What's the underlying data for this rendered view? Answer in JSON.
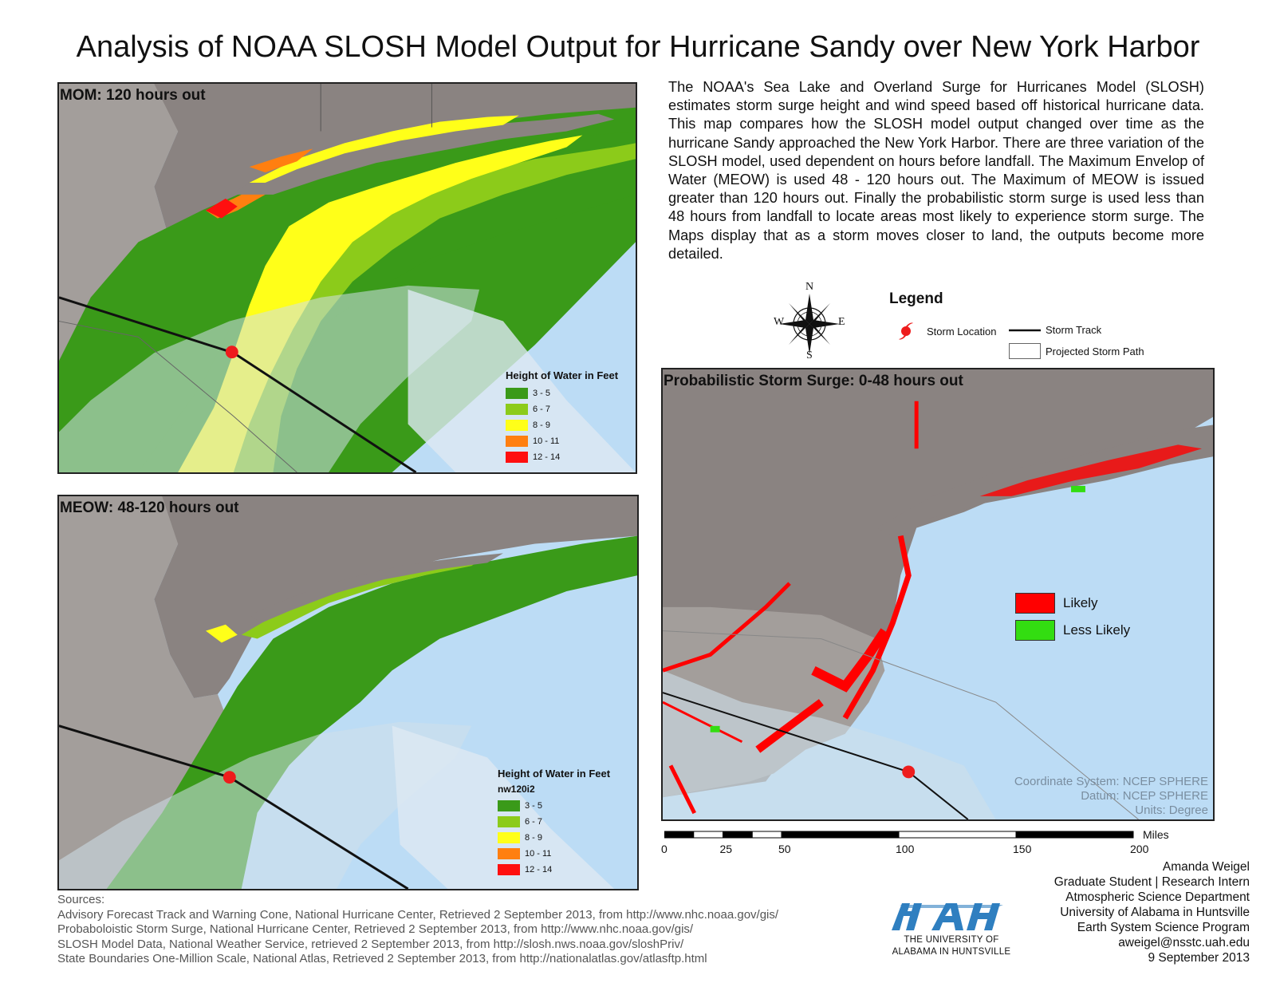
{
  "title": "Analysis of NOAA SLOSH Model Output for Hurricane Sandy over New York Harbor",
  "description": "The NOAA's Sea Lake and Overland Surge for Hurricanes Model (SLOSH) estimates storm surge height and wind speed based off historical hurricane data.  This map compares how the SLOSH model output changed over time as the hurricane Sandy approached the New York Harbor.  There are three variation of the SLOSH model, used dependent on hours before landfall. The Maximum Envelop of Water (MEOW) is used 48 - 120 hours out.  The Maximum of MEOW is issued greater than 120 hours out.  Finally the probabilistic storm surge is used less than 48 hours from landfall to locate areas most likely to experience storm surge.  The Maps display that as a storm moves closer to land, the outputs become more detailed.",
  "colors": {
    "ocean": "#bcdcf5",
    "land": "#8a8381",
    "land_light": "#a39e9b",
    "cone": "#dde9f2",
    "likely": "#ff0000",
    "less_likely": "#33dd11"
  },
  "water_height_classes": [
    {
      "label": "3 - 5",
      "color": "#3a9a19"
    },
    {
      "label": "6 - 7",
      "color": "#8ccb1a"
    },
    {
      "label": "8 - 9",
      "color": "#ffff19"
    },
    {
      "label": "10 - 11",
      "color": "#ff7f10"
    },
    {
      "label": "12 - 14",
      "color": "#ff0f0f"
    }
  ],
  "maps": {
    "mom": {
      "title": "MOM: 120 hours out",
      "legend_title": "Height of Water in Feet"
    },
    "meow": {
      "title": "MEOW: 48-120 hours out",
      "legend_title": "Height of Water in Feet",
      "legend_subtitle": "nw120i2"
    },
    "probabilistic": {
      "title": "Probabilistic  Storm Surge: 0-48 hours out",
      "legend": [
        {
          "label": "Likely",
          "color": "#ff0000"
        },
        {
          "label": "Less Likely",
          "color": "#33dd11"
        }
      ],
      "coordinate_system": "Coordinate System: NCEP SPHERE",
      "datum": "Datum: NCEP SPHERE",
      "units": "Units: Degree"
    }
  },
  "compass": {
    "n": "N",
    "s": "S",
    "e": "E",
    "w": "W"
  },
  "main_legend": {
    "title": "Legend",
    "storm_location": "Storm Location",
    "storm_track": "Storm Track",
    "projected_path": "Projected Storm Path"
  },
  "scale_bar": {
    "unit": "Miles",
    "ticks": [
      {
        "label": "0",
        "value": 0
      },
      {
        "label": "25",
        "value": 25
      },
      {
        "label": "50",
        "value": 50
      },
      {
        "label": "100",
        "value": 100
      },
      {
        "label": "150",
        "value": 150
      },
      {
        "label": "200",
        "value": 200
      }
    ]
  },
  "author": [
    "Amanda Weigel",
    "Graduate Student | Research Intern",
    "Atmospheric Science Department",
    "University of Alabama in Huntsville",
    "Earth System Science Program",
    "aweigel@nsstc.uah.edu",
    "9 September 2013"
  ],
  "sources": [
    "Sources:",
    "Advisory Forecast Track and Warning Cone,  National Hurricane Center, Retrieved 2 September 2013, from http://www.nhc.noaa.gov/gis/",
    "Probaboloistic Storm Surge, National Hurricane Center, Retrieved 2 September 2013, from http://www.nhc.noaa.gov/gis/",
    "SLOSH Model Data, National Weather Service, retrieved 2 September 2013, from http://slosh.nws.noaa.gov/sloshPriv/",
    "State Boundaries One-Million Scale, National Atlas, Retrieved 2 September 2013, from http://nationalatlas.gov/atlasftp.html"
  ],
  "logo": {
    "line1": "THE UNIVERSITY OF",
    "line2": "ALABAMA IN HUNTSVILLE"
  }
}
